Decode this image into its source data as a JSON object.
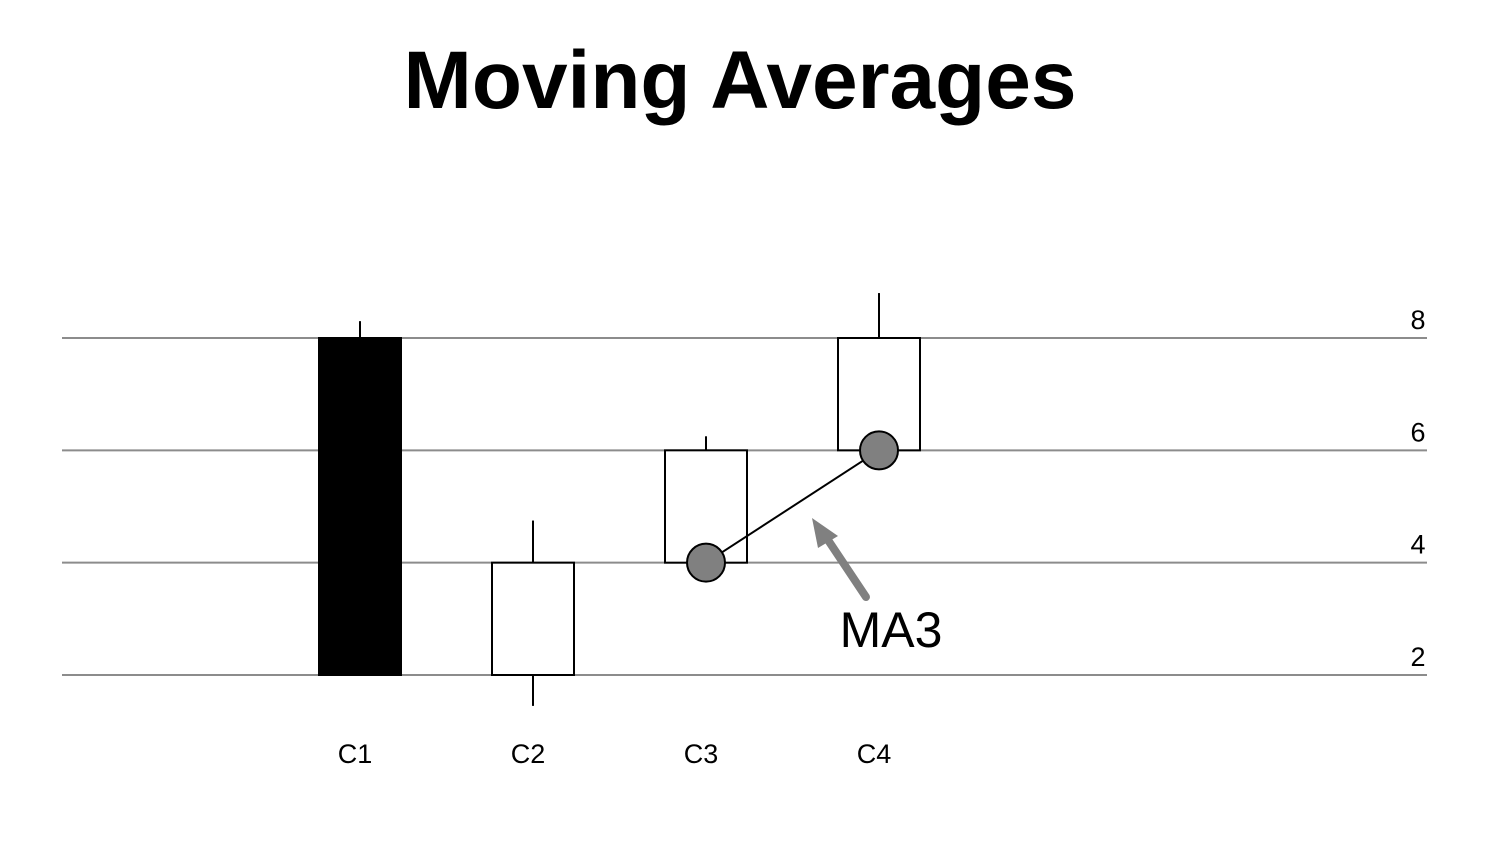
{
  "title": "Moving Averages",
  "chart_data": {
    "type": "candlestick",
    "categories": [
      "C1",
      "C2",
      "C3",
      "C4"
    ],
    "candles": [
      {
        "name": "C1",
        "open": 8,
        "close": 2,
        "high": 8.3,
        "low": 2,
        "direction": "down"
      },
      {
        "name": "C2",
        "open": 2,
        "close": 4,
        "high": 4.75,
        "low": 1.45,
        "direction": "up"
      },
      {
        "name": "C3",
        "open": 4,
        "close": 6,
        "high": 6.25,
        "low": 4,
        "direction": "up"
      },
      {
        "name": "C4",
        "open": 6,
        "close": 8,
        "high": 8.8,
        "low": 6,
        "direction": "up"
      }
    ],
    "moving_average": {
      "name": "MA3",
      "points": [
        {
          "x": "C3",
          "y": 4
        },
        {
          "x": "C4",
          "y": 6
        }
      ]
    },
    "yticks": [
      2,
      4,
      6,
      8
    ],
    "ylim": [
      2,
      8
    ],
    "grid": true,
    "annotation": "MA3",
    "colors": {
      "down_candle": "#000000",
      "up_candle": "#ffffff",
      "grid": "#8c8c8c",
      "ma_marker": "#808080",
      "arrow": "#808080"
    }
  }
}
